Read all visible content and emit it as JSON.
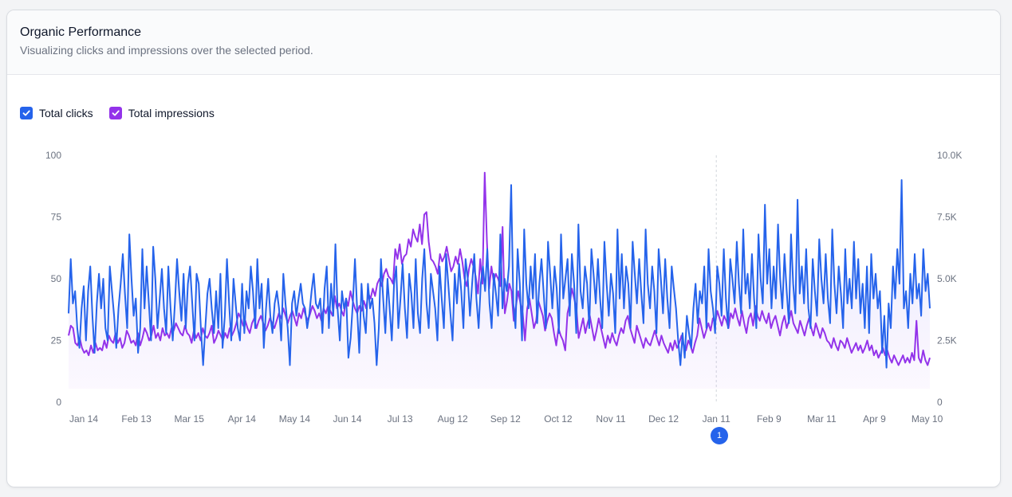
{
  "card": {
    "title": "Organic Performance",
    "subtitle": "Visualizing clicks and impressions over the selected period."
  },
  "legend": {
    "items": [
      {
        "label": "Total clicks",
        "checked": true,
        "color": "#2563eb"
      },
      {
        "label": "Total impressions",
        "checked": true,
        "color": "#9333ea"
      }
    ]
  },
  "annotation": {
    "label": "1",
    "date": "Jan 11",
    "color": "#2563eb"
  },
  "chart_data": {
    "type": "line",
    "x_start": "Jan 1",
    "x_end": "May 13",
    "x_tick_labels": [
      "Jan 14",
      "Feb 13",
      "Mar 15",
      "Apr 14",
      "May 14",
      "Jun 14",
      "Jul 13",
      "Aug 12",
      "Sep 12",
      "Oct 12",
      "Nov 11",
      "Dec 12",
      "Jan 11",
      "Feb 9",
      "Mar 11",
      "Apr 9",
      "May 10"
    ],
    "y_left": {
      "ticks": [
        "0",
        "25",
        "50",
        "75",
        "100"
      ],
      "range": [
        0,
        100
      ]
    },
    "y_right": {
      "ticks": [
        "0",
        "2.5K",
        "5.0K",
        "7.5K",
        "10.0K"
      ],
      "range": [
        0,
        10000
      ]
    },
    "grid": false,
    "legend_position": "top-left",
    "series": [
      {
        "name": "Total clicks",
        "axis": "left",
        "color": "#2563eb",
        "area": true,
        "values": [
          36,
          58,
          40,
          45,
          30,
          22,
          38,
          47,
          25,
          45,
          55,
          35,
          20,
          40,
          52,
          38,
          50,
          30,
          25,
          55,
          45,
          35,
          22,
          38,
          48,
          60,
          44,
          30,
          68,
          50,
          35,
          42,
          20,
          30,
          62,
          38,
          55,
          40,
          25,
          63,
          50,
          30,
          42,
          54,
          38,
          28,
          55,
          38,
          25,
          40,
          58,
          45,
          33,
          52,
          30,
          48,
          55,
          40,
          25,
          52,
          48,
          30,
          15,
          30,
          44,
          50,
          38,
          28,
          45,
          30,
          52,
          22,
          35,
          58,
          40,
          25,
          50,
          40,
          30,
          25,
          48,
          28,
          45,
          38,
          55,
          45,
          30,
          58,
          38,
          48,
          22,
          38,
          50,
          35,
          28,
          40,
          45,
          38,
          25,
          52,
          40,
          30,
          15,
          40,
          45,
          35,
          42,
          48,
          40,
          38,
          30,
          36,
          45,
          52,
          40,
          38,
          42,
          28,
          46,
          55,
          30,
          48,
          35,
          64,
          38,
          25,
          45,
          38,
          42,
          18,
          26,
          40,
          58,
          38,
          20,
          48,
          35,
          28,
          48,
          38,
          42,
          32,
          15,
          30,
          58,
          42,
          28,
          50,
          38,
          25,
          48,
          55,
          30,
          42,
          56,
          38,
          26,
          52,
          44,
          30,
          58,
          36,
          28,
          50,
          62,
          40,
          30,
          52,
          45,
          38,
          25,
          55,
          42,
          30,
          60,
          48,
          36,
          25,
          52,
          40,
          56,
          45,
          30,
          58,
          50,
          35,
          48,
          60,
          42,
          30,
          48,
          55,
          45,
          62,
          40,
          30,
          52,
          44,
          35,
          68,
          38,
          50,
          45,
          55,
          88,
          40,
          30,
          62,
          48,
          25,
          70,
          48,
          38,
          55,
          42,
          60,
          32,
          48,
          58,
          44,
          30,
          65,
          52,
          38,
          55,
          46,
          28,
          68,
          42,
          50,
          58,
          35,
          60,
          48,
          28,
          72,
          45,
          38,
          55,
          48,
          30,
          62,
          52,
          40,
          58,
          42,
          30,
          65,
          48,
          35,
          52,
          44,
          28,
          70,
          42,
          60,
          38,
          55,
          48,
          30,
          65,
          52,
          40,
          58,
          44,
          32,
          70,
          48,
          38,
          55,
          45,
          28,
          62,
          50,
          36,
          58,
          42,
          30,
          55,
          46,
          38,
          25,
          15,
          28,
          18,
          35,
          28,
          22,
          38,
          48,
          32,
          45,
          40,
          55,
          30,
          62,
          45,
          38,
          28,
          55,
          48,
          35,
          62,
          42,
          30,
          58,
          50,
          40,
          65,
          48,
          36,
          70,
          44,
          52,
          38,
          60,
          42,
          30,
          68,
          50,
          40,
          80,
          48,
          62,
          38,
          55,
          42,
          72,
          50,
          38,
          60,
          45,
          32,
          68,
          48,
          36,
          82,
          44,
          55,
          40,
          62,
          38,
          30,
          58,
          45,
          35,
          66,
          50,
          40,
          60,
          42,
          32,
          70,
          48,
          36,
          55,
          44,
          30,
          62,
          40,
          50,
          38,
          65,
          42,
          58,
          36,
          48,
          30,
          55,
          28,
          60,
          42,
          52,
          38,
          45,
          20,
          35,
          14,
          40,
          30,
          55,
          42,
          62,
          48,
          90,
          38,
          45,
          30,
          52,
          40,
          60,
          42,
          48,
          35,
          62,
          45,
          52,
          38
        ]
      },
      {
        "name": "Total impressions",
        "axis": "right",
        "color": "#9333ea",
        "area": false,
        "values": [
          2700,
          3100,
          3000,
          2400,
          2300,
          2600,
          2200,
          2000,
          2100,
          1900,
          2300,
          2000,
          2400,
          2100,
          2200,
          2100,
          2500,
          2200,
          2700,
          2500,
          2400,
          2800,
          2400,
          2600,
          2200,
          2400,
          2900,
          2700,
          2400,
          2500,
          2300,
          2800,
          2300,
          2600,
          3000,
          2800,
          2500,
          2700,
          3100,
          2600,
          2800,
          2500,
          3000,
          2700,
          2800,
          2600,
          3000,
          2900,
          3200,
          3000,
          2800,
          2700,
          3100,
          2800,
          2700,
          2400,
          2900,
          2600,
          2800,
          2500,
          3000,
          2700,
          2600,
          2800,
          3100,
          2400,
          2600,
          2900,
          2700,
          2500,
          2800,
          2600,
          3000,
          2700,
          2900,
          3200,
          3600,
          3400,
          3100,
          3300,
          3000,
          2800,
          3200,
          3400,
          3000,
          3300,
          3500,
          3200,
          2900,
          3100,
          3400,
          3200,
          3000,
          3300,
          3600,
          3400,
          3800,
          3500,
          3200,
          3500,
          3700,
          3400,
          3100,
          3600,
          3400,
          3800,
          3500,
          3300,
          3600,
          3900,
          3700,
          3400,
          3600,
          3300,
          3800,
          3600,
          3900,
          3700,
          3500,
          4300,
          3800,
          4000,
          3700,
          3500,
          4200,
          3900,
          4500,
          4100,
          3800,
          3600,
          3900,
          3700,
          4100,
          3800,
          4400,
          4200,
          4600,
          4300,
          4800,
          5000,
          4700,
          5200,
          5400,
          5100,
          5000,
          4800,
          6200,
          5800,
          6400,
          5600,
          5900,
          6000,
          6600,
          6300,
          7000,
          6700,
          6500,
          7200,
          6400,
          7600,
          7700,
          6500,
          5800,
          5700,
          5500,
          5200,
          6000,
          5700,
          5900,
          6300,
          5800,
          5300,
          5500,
          5900,
          5600,
          6200,
          5700,
          5000,
          4700,
          5400,
          5800,
          5500,
          5100,
          4400,
          5800,
          4800,
          9300,
          6500,
          4600,
          5500,
          4900,
          5200,
          5000,
          4700,
          7100,
          3600,
          4100,
          4800,
          4500,
          3300,
          3900,
          4500,
          4000,
          3600,
          2500,
          3800,
          4200,
          3600,
          3000,
          3300,
          4100,
          3800,
          3500,
          2900,
          3300,
          3600,
          3400,
          2800,
          2300,
          3000,
          2700,
          2500,
          2100,
          3600,
          4000,
          4600,
          4200,
          3800,
          2600,
          3000,
          3400,
          2800,
          3200,
          3500,
          3000,
          2500,
          2900,
          3400,
          3000,
          2600,
          2200,
          2700,
          2400,
          2800,
          2500,
          2300,
          2700,
          3000,
          2800,
          3300,
          3500,
          3000,
          2700,
          2400,
          3100,
          2800,
          2500,
          2200,
          2600,
          2400,
          2300,
          2600,
          2900,
          2600,
          2300,
          2700,
          2400,
          2200,
          2000,
          2400,
          2100,
          2500,
          2200,
          2400,
          2700,
          2300,
          2100,
          2500,
          2300,
          2000,
          2400,
          2700,
          3400,
          3000,
          2600,
          2900,
          3200,
          2900,
          3400,
          3200,
          3700,
          3400,
          3100,
          3500,
          3300,
          3000,
          3600,
          3400,
          3800,
          3400,
          3100,
          3700,
          3200,
          2800,
          3400,
          3600,
          3100,
          3900,
          3500,
          3300,
          3700,
          3400,
          3200,
          3600,
          3000,
          3300,
          3500,
          3100,
          2700,
          3200,
          3500,
          3000,
          3300,
          3700,
          3200,
          3000,
          2800,
          3300,
          3000,
          2700,
          3100,
          3400,
          3000,
          2700,
          3200,
          2900,
          2600,
          3000,
          2800,
          2500,
          2400,
          2200,
          2600,
          2300,
          2100,
          2500,
          2400,
          2200,
          2600,
          2300,
          2000,
          2200,
          2400,
          2100,
          2300,
          2000,
          2200,
          2500,
          2100,
          2300,
          1900,
          2100,
          1800,
          2000,
          2200,
          1900,
          2100,
          1800,
          1600,
          1900,
          1700,
          1500,
          1700,
          1900,
          1600,
          1800,
          1600,
          2000,
          1700,
          3300,
          1800,
          1600,
          2100,
          1700,
          1500,
          1800
        ]
      }
    ]
  }
}
